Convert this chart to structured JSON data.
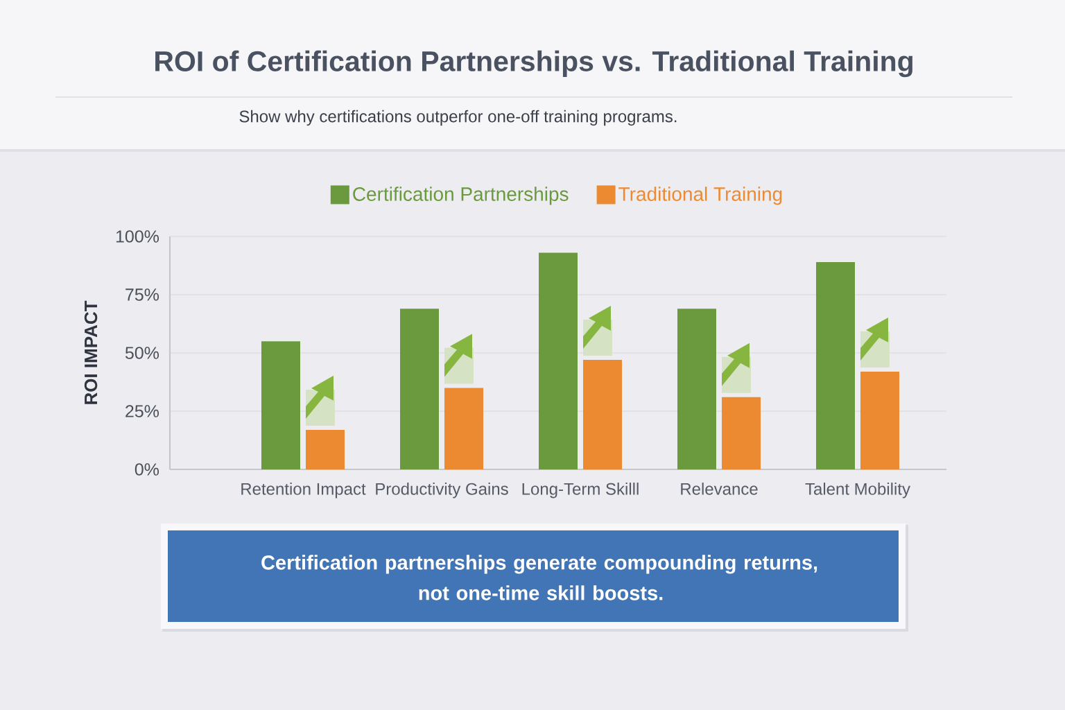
{
  "chart_data": {
    "type": "bar",
    "title": "ROI of Certification Partnerships vs. Traditional Training",
    "subtitle": "Show why certifications outperfor one-off training programs.",
    "ylabel": "ROI IMPACT",
    "categories": [
      "Retention Impact",
      "Productivity Gains",
      "Long-Term Skilll",
      "Relevance",
      "Talent Mobility"
    ],
    "series": [
      {
        "name": "Certification Partnerships",
        "color": "#6b9a3e",
        "values": [
          55,
          69,
          93,
          69,
          89
        ]
      },
      {
        "name": "Traditional Training",
        "color": "#ec8a32",
        "values": [
          17,
          35,
          47,
          31,
          42
        ]
      }
    ],
    "ylim": [
      0,
      100
    ],
    "yticks": [
      {
        "value": 0,
        "label": "0%"
      },
      {
        "value": 25,
        "label": "25%"
      },
      {
        "value": 50,
        "label": "50%"
      },
      {
        "value": 75,
        "label": "75%"
      },
      {
        "value": 100,
        "label": "100%"
      }
    ],
    "grid": "y",
    "legend": "top",
    "annotations": [
      "Certification partnerships generate compounding returns, not one-time skill boosts."
    ]
  }
}
